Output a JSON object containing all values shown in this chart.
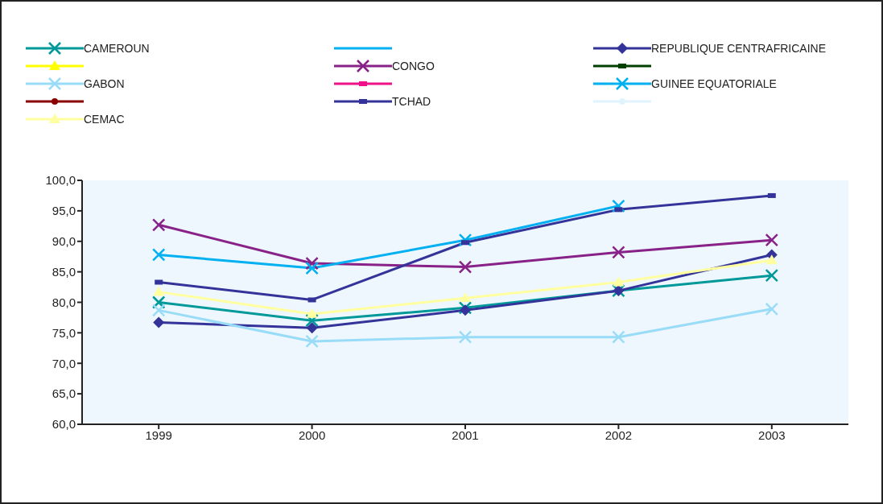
{
  "chart_data": {
    "type": "line",
    "categories": [
      "1999",
      "2000",
      "2001",
      "2002",
      "2003"
    ],
    "series": [
      {
        "name": "CAMEROUN",
        "color": "#009999",
        "marker": "cross",
        "values": [
          80.0,
          77.0,
          79.1,
          81.9,
          84.4
        ]
      },
      {
        "color": "#00b0f0",
        "marker": "none",
        "values": [
          null,
          null,
          null,
          null,
          null
        ]
      },
      {
        "name": "REPUBLIQUE CENTRAFRICAINE",
        "color": "#333399",
        "marker": "diamond",
        "values": [
          76.7,
          75.8,
          78.7,
          81.9,
          87.8
        ]
      },
      {
        "color": "#ffff00",
        "marker": "triangle",
        "values": [
          null,
          null,
          null,
          null,
          null
        ]
      },
      {
        "name": "CONGO",
        "color": "#882288",
        "marker": "cross",
        "values": [
          92.7,
          86.4,
          85.8,
          88.2,
          90.2
        ]
      },
      {
        "color": "#004000",
        "marker": "square",
        "values": [
          null,
          null,
          null,
          null,
          null
        ]
      },
      {
        "name": "GABON",
        "color": "#99dcf8",
        "marker": "cross",
        "values": [
          78.7,
          73.6,
          74.3,
          74.3,
          78.9
        ]
      },
      {
        "color": "#ee1188",
        "marker": "square",
        "values": [
          null,
          null,
          null,
          null,
          null
        ]
      },
      {
        "name": "GUINEE EQUATORIALE",
        "color": "#00b0f0",
        "marker": "cross",
        "values": [
          87.8,
          85.6,
          90.2,
          95.8,
          null
        ]
      },
      {
        "color": "#880000",
        "marker": "circle",
        "values": [
          null,
          null,
          null,
          null,
          null
        ]
      },
      {
        "name": "TCHAD",
        "color": "#333399",
        "marker": "square",
        "values": [
          83.3,
          80.4,
          89.8,
          95.2,
          97.5
        ]
      },
      {
        "color": "#e0f4ff",
        "marker": "circle",
        "values": [
          null,
          null,
          null,
          null,
          null
        ]
      },
      {
        "name": "CEMAC",
        "color": "#ffffa0",
        "marker": "triangle",
        "values": [
          81.7,
          78.1,
          80.7,
          83.3,
          86.9
        ]
      }
    ],
    "ylim": [
      60,
      100
    ],
    "yticks": [
      {
        "value": 60,
        "label": "60,0"
      },
      {
        "value": 65,
        "label": "65,0"
      },
      {
        "value": 70,
        "label": "70,0"
      },
      {
        "value": 75,
        "label": "75,0"
      },
      {
        "value": 80,
        "label": "80,0"
      },
      {
        "value": 85,
        "label": "85,0"
      },
      {
        "value": 90,
        "label": "90,0"
      },
      {
        "value": 95,
        "label": "95,0"
      },
      {
        "value": 100,
        "label": "100,0"
      }
    ],
    "legend": "top",
    "grid": false
  }
}
